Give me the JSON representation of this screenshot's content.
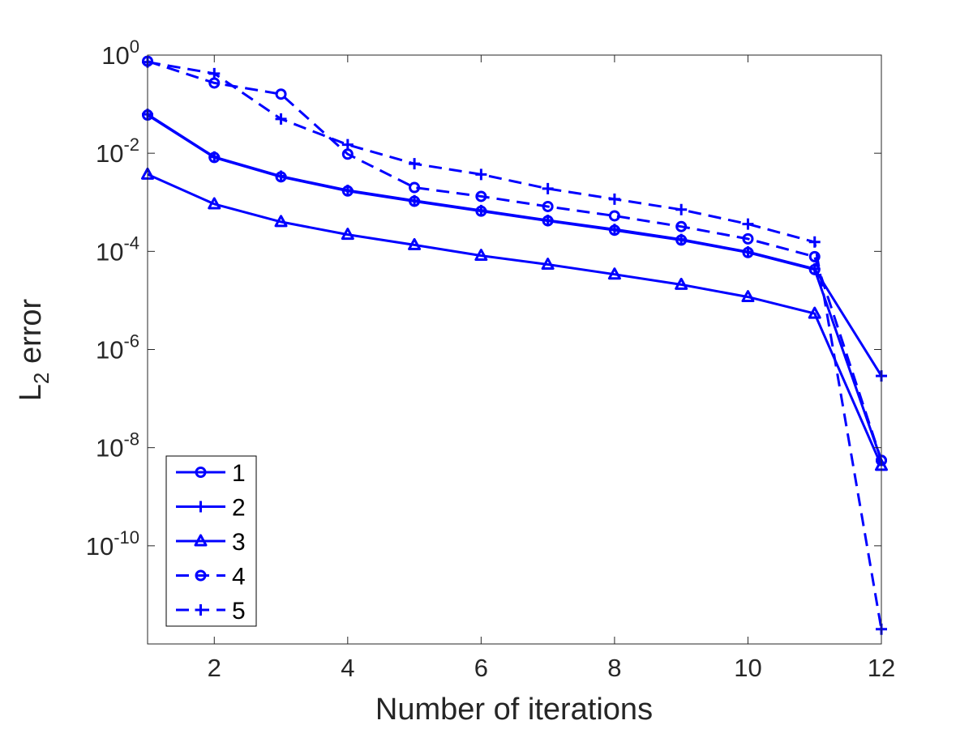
{
  "chart_data": {
    "type": "line",
    "title": "",
    "xlabel": "Number of iterations",
    "ylabel": {
      "main": "L",
      "sub": "2",
      "rest": " error"
    },
    "yscale": "log",
    "xlim": [
      1,
      12
    ],
    "ylim_exp": [
      -12,
      0
    ],
    "xticks": [
      2,
      4,
      6,
      8,
      10,
      12
    ],
    "yticks_exp": [
      0,
      -2,
      -4,
      -6,
      -8,
      -10
    ],
    "ytick_base": "10",
    "x": [
      1,
      2,
      3,
      4,
      5,
      6,
      7,
      8,
      9,
      10,
      11,
      12
    ],
    "series_color": "#0000ff",
    "legend_location": "bottom-left",
    "series": [
      {
        "name": "1",
        "marker": "circle",
        "linestyle": "solid",
        "values": [
          0.06,
          0.0082,
          0.0033,
          0.0017,
          0.00105,
          0.00066,
          0.00042,
          0.00027,
          0.00017,
          9.48e-05,
          4.25e-05,
          5.5e-09
        ]
      },
      {
        "name": "2",
        "marker": "plus",
        "linestyle": "solid",
        "values": [
          0.062,
          0.0084,
          0.0034,
          0.00175,
          0.00108,
          0.00068,
          0.00043,
          0.00028,
          0.000175,
          9.75e-05,
          4.4e-05,
          2.9e-07
        ]
      },
      {
        "name": "3",
        "marker": "triangle",
        "linestyle": "solid",
        "values": [
          0.0037,
          0.00092,
          0.0004,
          0.00022,
          0.000135,
          8.2e-05,
          5.4e-05,
          3.4e-05,
          2.1e-05,
          1.18e-05,
          5.4e-06,
          4.3e-09
        ]
      },
      {
        "name": "4",
        "marker": "circle",
        "linestyle": "dashed",
        "values": [
          0.75,
          0.27,
          0.16,
          0.0096,
          0.002,
          0.00132,
          0.00082,
          0.00053,
          0.00032,
          0.00018,
          7.8e-05,
          5.5e-09
        ]
      },
      {
        "name": "5",
        "marker": "plus",
        "linestyle": "dashed",
        "values": [
          0.72,
          0.42,
          0.05,
          0.0149,
          0.0061,
          0.0037,
          0.0019,
          0.00116,
          0.00071,
          0.00036,
          0.000155,
          2e-12
        ]
      }
    ]
  }
}
